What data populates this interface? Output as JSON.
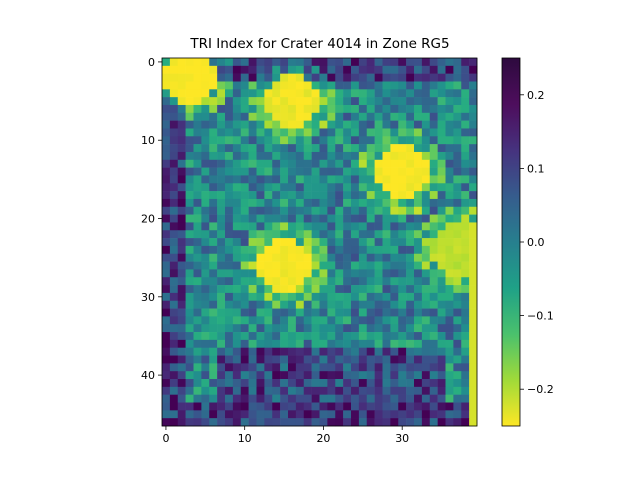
{
  "chart_data": {
    "type": "heatmap",
    "title": "TRI Index for Crater 4014 in Zone RG5",
    "xlabel": "",
    "ylabel": "",
    "n_cols": 40,
    "n_rows": 47,
    "x_ticks": [
      0,
      10,
      20,
      30
    ],
    "y_ticks": [
      0,
      10,
      20,
      30,
      40
    ],
    "colormap": "viridis_r",
    "clim": [
      -0.25,
      0.25
    ],
    "colorbar": {
      "ticks": [
        0.2,
        0.1,
        0.0,
        -0.1,
        -0.2
      ],
      "tick_labels": [
        "0.2",
        "0.1",
        "0.0",
        "−0.1",
        "−0.2"
      ]
    },
    "grid": false,
    "regions": {
      "low_value_hotspots": [
        {
          "center": [
            15,
            26
          ],
          "value": -0.25
        },
        {
          "center": [
            30,
            14
          ],
          "value": -0.25
        },
        {
          "center": [
            3,
            2
          ],
          "value": -0.25
        },
        {
          "center": [
            16,
            5
          ],
          "value": -0.24
        },
        {
          "center": [
            37,
            24
          ],
          "value": -0.2
        }
      ],
      "high_value_rims": [
        {
          "description": "left and lower crater rim",
          "value": 0.24
        },
        {
          "description": "upper band",
          "value": 0.22
        }
      ]
    }
  }
}
